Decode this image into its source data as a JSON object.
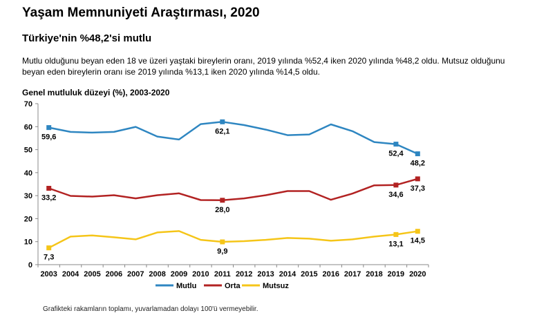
{
  "header": {
    "title": "Yaşam Memnuniyeti Araştırması, 2020",
    "subtitle": "Türkiye'nin %48,2'si mutlu",
    "description": "Mutlu olduğunu beyan eden 18 ve üzeri yaştaki bireylerin oranı, 2019 yılında %52,4 iken 2020 yılında %48,2 oldu. Mutsuz olduğunu beyan eden bireylerin oranı ise 2019 yılında %13,1 iken 2020 yılında %14,5 oldu."
  },
  "footnote": "Grafikteki rakamların toplamı, yuvarlamadan dolayı 100'ü vermeyebilir.",
  "chart_data": {
    "type": "line",
    "title": "Genel mutluluk düzeyi (%), 2003-2020",
    "xlabel": "",
    "ylabel": "",
    "ylim": [
      0,
      70
    ],
    "yticks": [
      "0",
      "10",
      "20",
      "30",
      "40",
      "50",
      "60",
      "70"
    ],
    "grid": false,
    "legend": "bottom",
    "x": [
      "2003",
      "2004",
      "2005",
      "2006",
      "2007",
      "2008",
      "2009",
      "2010",
      "2011",
      "2012",
      "2013",
      "2014",
      "2015",
      "2016",
      "2017",
      "2018",
      "2019",
      "2020"
    ],
    "series": [
      {
        "name": "Mutlu",
        "color": "#2e86c1",
        "values": [
          59.6,
          57.7,
          57.4,
          57.7,
          59.9,
          55.7,
          54.4,
          61.1,
          62.1,
          60.7,
          58.7,
          56.3,
          56.6,
          61.0,
          58.0,
          53.3,
          52.4,
          48.2
        ],
        "markers": [
          0,
          8,
          16,
          17
        ],
        "labels": [
          {
            "i": 0,
            "text": "59,6",
            "pos": "below"
          },
          {
            "i": 8,
            "text": "62,1",
            "pos": "below"
          },
          {
            "i": 16,
            "text": "52,4",
            "pos": "below"
          },
          {
            "i": 17,
            "text": "48,2",
            "pos": "below"
          }
        ]
      },
      {
        "name": "Orta",
        "color": "#b22222",
        "values": [
          33.2,
          29.9,
          29.6,
          30.2,
          28.8,
          30.2,
          31.0,
          28.1,
          28.0,
          28.8,
          30.2,
          32.0,
          32.0,
          28.2,
          30.9,
          34.5,
          34.6,
          37.3
        ],
        "markers": [
          0,
          8,
          16,
          17
        ],
        "labels": [
          {
            "i": 0,
            "text": "33,2",
            "pos": "below"
          },
          {
            "i": 8,
            "text": "28,0",
            "pos": "below"
          },
          {
            "i": 16,
            "text": "34,6",
            "pos": "below"
          },
          {
            "i": 17,
            "text": "37,3",
            "pos": "below"
          }
        ]
      },
      {
        "name": "Mutsuz",
        "color": "#f5c518",
        "values": [
          7.3,
          12.2,
          12.7,
          11.9,
          11.0,
          14.0,
          14.6,
          10.8,
          9.9,
          10.2,
          10.8,
          11.6,
          11.3,
          10.4,
          11.0,
          12.2,
          13.1,
          14.5
        ],
        "markers": [
          0,
          8,
          16,
          17
        ],
        "labels": [
          {
            "i": 0,
            "text": "7,3",
            "pos": "below"
          },
          {
            "i": 8,
            "text": "9,9",
            "pos": "below"
          },
          {
            "i": 16,
            "text": "13,1",
            "pos": "below"
          },
          {
            "i": 17,
            "text": "14,5",
            "pos": "below"
          }
        ]
      }
    ]
  }
}
